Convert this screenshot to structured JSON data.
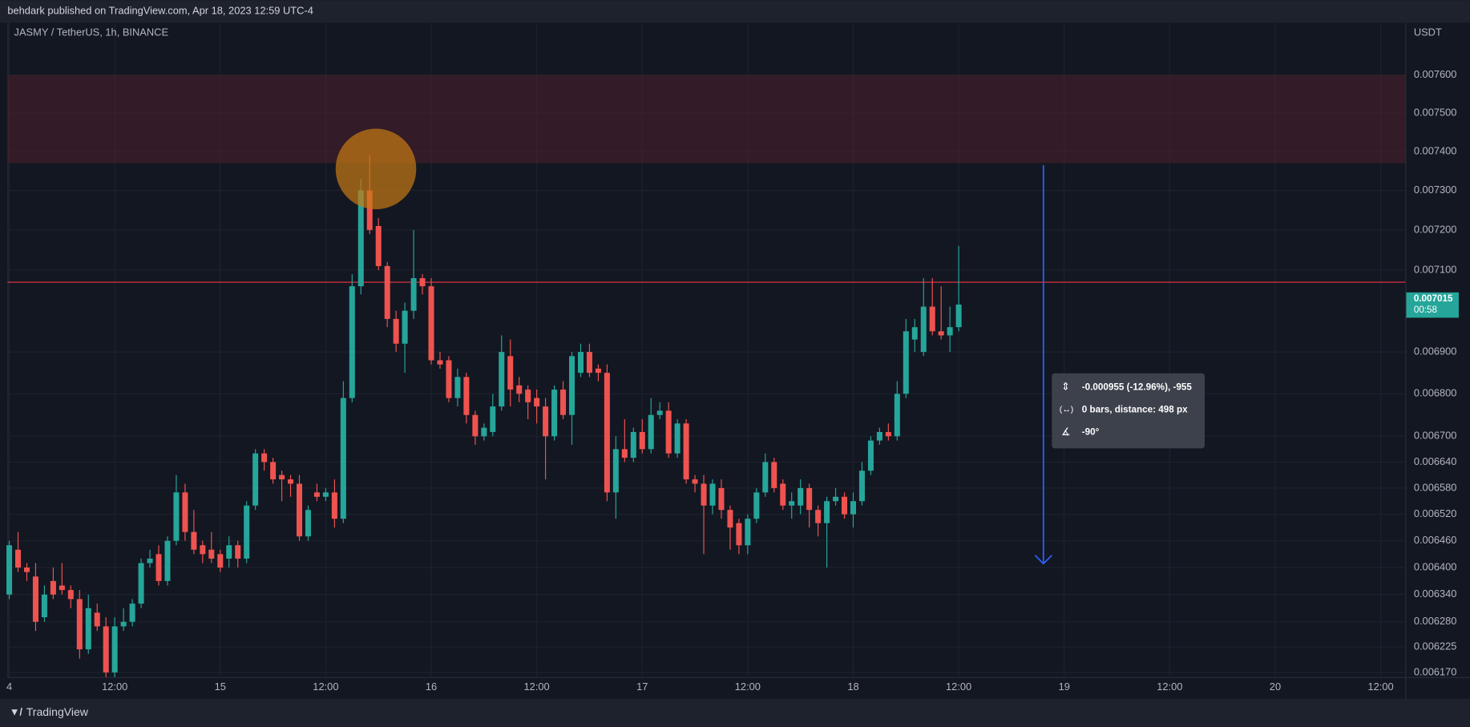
{
  "header": {
    "text": "behdark published on TradingView.com, Apr 18, 2023 12:59 UTC-4"
  },
  "footer": {
    "brand": "TradingView"
  },
  "chart_data": {
    "type": "candlestick",
    "title": "JASMY / TetherUS, 1h, BINANCE",
    "y_axis_label": "USDT",
    "log_scale": true,
    "grid": true,
    "up_color": "#26a69a",
    "down_color": "#ef5350",
    "open": [
      0.00634,
      0.00644,
      0.0064,
      0.00638,
      0.00629,
      0.00637,
      0.00636,
      0.00635,
      0.00633,
      0.00622,
      0.0063,
      0.00627,
      0.00617,
      0.00627,
      0.00628,
      0.00632,
      0.00641,
      0.00643,
      0.00637,
      0.00646,
      0.00657,
      0.00648,
      0.00645,
      0.00644,
      0.00643,
      0.00642,
      0.00645,
      0.00642,
      0.00654,
      0.00666,
      0.00664,
      0.00661,
      0.0066,
      0.00659,
      0.00647,
      0.00657,
      0.00656,
      0.00657,
      0.00651,
      0.00679,
      0.00706,
      0.0073,
      0.00721,
      0.00711,
      0.00698,
      0.00692,
      0.007,
      0.00708,
      0.00706,
      0.00688,
      0.00688,
      0.00679,
      0.00684,
      0.00675,
      0.0067,
      0.00671,
      0.00677,
      0.00689,
      0.00682,
      0.00681,
      0.00679,
      0.00677,
      0.0067,
      0.00681,
      0.00675,
      0.00685,
      0.0069,
      0.00686,
      0.00685,
      0.00657,
      0.00667,
      0.00665,
      0.00671,
      0.00667,
      0.00675,
      0.00676,
      0.00666,
      0.00673,
      0.0066,
      0.00659,
      0.00654,
      0.00658,
      0.00653,
      0.0065,
      0.00645,
      0.00651,
      0.00657,
      0.00664,
      0.00659,
      0.00654,
      0.00654,
      0.00658,
      0.00653,
      0.0065,
      0.00655,
      0.00656,
      0.00652,
      0.00655,
      0.00662,
      0.00669,
      0.00671,
      0.0067,
      0.0068,
      0.00693,
      0.0069,
      0.00701,
      0.00695,
      0.00694,
      0.00696
    ],
    "high": [
      0.00646,
      0.00648,
      0.00641,
      0.00641,
      0.00636,
      0.0064,
      0.00641,
      0.00636,
      0.00635,
      0.00634,
      0.00632,
      0.00629,
      0.00629,
      0.00631,
      0.00633,
      0.00642,
      0.00644,
      0.00645,
      0.00647,
      0.00661,
      0.00659,
      0.00653,
      0.00646,
      0.00648,
      0.00644,
      0.00647,
      0.00646,
      0.00655,
      0.00667,
      0.00667,
      0.00665,
      0.00662,
      0.00661,
      0.00661,
      0.00654,
      0.00659,
      0.00658,
      0.0066,
      0.00683,
      0.00709,
      0.00733,
      0.00739,
      0.00723,
      0.00712,
      0.007,
      0.00702,
      0.0072,
      0.00709,
      0.00708,
      0.0069,
      0.00689,
      0.00686,
      0.00685,
      0.00676,
      0.00673,
      0.0068,
      0.00694,
      0.00693,
      0.00684,
      0.00682,
      0.00681,
      0.00679,
      0.00682,
      0.00683,
      0.0069,
      0.00692,
      0.00692,
      0.00687,
      0.00687,
      0.0067,
      0.00674,
      0.00672,
      0.00674,
      0.00679,
      0.00678,
      0.00678,
      0.00674,
      0.00674,
      0.00661,
      0.00661,
      0.0066,
      0.0066,
      0.00654,
      0.00651,
      0.00652,
      0.00658,
      0.00666,
      0.00665,
      0.0066,
      0.00657,
      0.0066,
      0.00659,
      0.00654,
      0.00656,
      0.00658,
      0.00657,
      0.00657,
      0.00664,
      0.0067,
      0.00672,
      0.00673,
      0.00683,
      0.00698,
      0.00698,
      0.00708,
      0.00708,
      0.00706,
      0.00701,
      0.00716
    ],
    "low": [
      0.00633,
      0.00639,
      0.00637,
      0.00626,
      0.00628,
      0.00633,
      0.00634,
      0.00631,
      0.0062,
      0.00621,
      0.00626,
      0.00616,
      0.00616,
      0.00626,
      0.00627,
      0.00631,
      0.0064,
      0.00636,
      0.00636,
      0.00645,
      0.00646,
      0.00643,
      0.00641,
      0.00641,
      0.00639,
      0.0064,
      0.0064,
      0.00641,
      0.00653,
      0.00662,
      0.00659,
      0.00655,
      0.00656,
      0.00646,
      0.00646,
      0.00655,
      0.00655,
      0.00649,
      0.0065,
      0.00678,
      0.00704,
      0.00719,
      0.0071,
      0.00696,
      0.0069,
      0.00685,
      0.00698,
      0.00704,
      0.00687,
      0.00686,
      0.00678,
      0.00677,
      0.00673,
      0.00668,
      0.00669,
      0.0067,
      0.00676,
      0.00677,
      0.00678,
      0.00674,
      0.00673,
      0.0066,
      0.00669,
      0.00674,
      0.00668,
      0.00684,
      0.00684,
      0.00683,
      0.00655,
      0.00651,
      0.00664,
      0.00664,
      0.00666,
      0.00666,
      0.00674,
      0.00665,
      0.00665,
      0.00659,
      0.00657,
      0.00643,
      0.00652,
      0.00651,
      0.00644,
      0.00643,
      0.00643,
      0.0065,
      0.00656,
      0.00657,
      0.00653,
      0.00651,
      0.00652,
      0.00649,
      0.00647,
      0.0064,
      0.00654,
      0.00651,
      0.00649,
      0.00654,
      0.00661,
      0.00668,
      0.00669,
      0.00669,
      0.00679,
      0.0069,
      0.00689,
      0.00694,
      0.00693,
      0.0069,
      0.00695
    ],
    "close": [
      0.00645,
      0.0064,
      0.00639,
      0.00628,
      0.00634,
      0.00634,
      0.00635,
      0.00633,
      0.00622,
      0.00631,
      0.00627,
      0.00617,
      0.00627,
      0.00628,
      0.00632,
      0.00641,
      0.00642,
      0.00637,
      0.00646,
      0.00657,
      0.00648,
      0.00644,
      0.00643,
      0.00642,
      0.0064,
      0.00645,
      0.00642,
      0.00654,
      0.00666,
      0.00664,
      0.0066,
      0.0066,
      0.00659,
      0.00647,
      0.00653,
      0.00656,
      0.00657,
      0.00651,
      0.00679,
      0.00706,
      0.0073,
      0.0072,
      0.00711,
      0.00698,
      0.00692,
      0.007,
      0.00708,
      0.00706,
      0.00688,
      0.00687,
      0.00679,
      0.00684,
      0.00675,
      0.0067,
      0.00672,
      0.00677,
      0.0069,
      0.00681,
      0.0068,
      0.00678,
      0.00677,
      0.0067,
      0.00681,
      0.00675,
      0.00689,
      0.0069,
      0.00685,
      0.00685,
      0.00657,
      0.00667,
      0.00665,
      0.00671,
      0.00667,
      0.00675,
      0.00676,
      0.00666,
      0.00673,
      0.0066,
      0.00659,
      0.00654,
      0.00659,
      0.00653,
      0.00649,
      0.00645,
      0.00651,
      0.00657,
      0.00664,
      0.00658,
      0.00654,
      0.00655,
      0.00658,
      0.00653,
      0.0065,
      0.00655,
      0.00656,
      0.00652,
      0.00655,
      0.00662,
      0.00669,
      0.00671,
      0.0067,
      0.0068,
      0.00695,
      0.00696,
      0.00701,
      0.00695,
      0.00694,
      0.00696,
      0.007015
    ],
    "last_price": {
      "value": 0.007015,
      "label": "0.007015"
    },
    "countdown": "00:58",
    "resistance_zone": [
      0.00737,
      0.0076
    ],
    "horizontal_line": 0.00707,
    "ylim": [
      0.00616,
      0.00774
    ],
    "yticks": [
      {
        "value": 0.0076,
        "label": "0.007600"
      },
      {
        "value": 0.0075,
        "label": "0.007500"
      },
      {
        "value": 0.0074,
        "label": "0.007400"
      },
      {
        "value": 0.0073,
        "label": "0.007300"
      },
      {
        "value": 0.0072,
        "label": "0.007200"
      },
      {
        "value": 0.0071,
        "label": "0.007100"
      },
      {
        "value": 0.0069,
        "label": "0.006900"
      },
      {
        "value": 0.0068,
        "label": "0.006800"
      },
      {
        "value": 0.0067,
        "label": "0.006700"
      },
      {
        "value": 0.00664,
        "label": "0.006640"
      },
      {
        "value": 0.00658,
        "label": "0.006580"
      },
      {
        "value": 0.00652,
        "label": "0.006520"
      },
      {
        "value": 0.00646,
        "label": "0.006460"
      },
      {
        "value": 0.0064,
        "label": "0.006400"
      },
      {
        "value": 0.00634,
        "label": "0.006340"
      },
      {
        "value": 0.00628,
        "label": "0.006280"
      },
      {
        "value": 0.006225,
        "label": "0.006225"
      },
      {
        "value": 0.00617,
        "label": "0.006170"
      }
    ],
    "xlim": [
      -0.2,
      158.8
    ],
    "xticks": [
      {
        "value": 0,
        "label": "4"
      },
      {
        "value": 12,
        "label": "12:00"
      },
      {
        "value": 24,
        "label": "15"
      },
      {
        "value": 36,
        "label": "12:00"
      },
      {
        "value": 48,
        "label": "16"
      },
      {
        "value": 60,
        "label": "12:00"
      },
      {
        "value": 72,
        "label": "17"
      },
      {
        "value": 84,
        "label": "12:00"
      },
      {
        "value": 96,
        "label": "18"
      },
      {
        "value": 108,
        "label": "12:00"
      },
      {
        "value": 120,
        "label": "19"
      },
      {
        "value": 132,
        "label": "12:00"
      },
      {
        "value": 144,
        "label": "20"
      },
      {
        "value": 156,
        "label": "12:00"
      }
    ],
    "measure": {
      "change": "-0.000955 (-12.96%), -955",
      "bars": "0 bars, distance: 498 px",
      "angle": "-90°"
    }
  }
}
